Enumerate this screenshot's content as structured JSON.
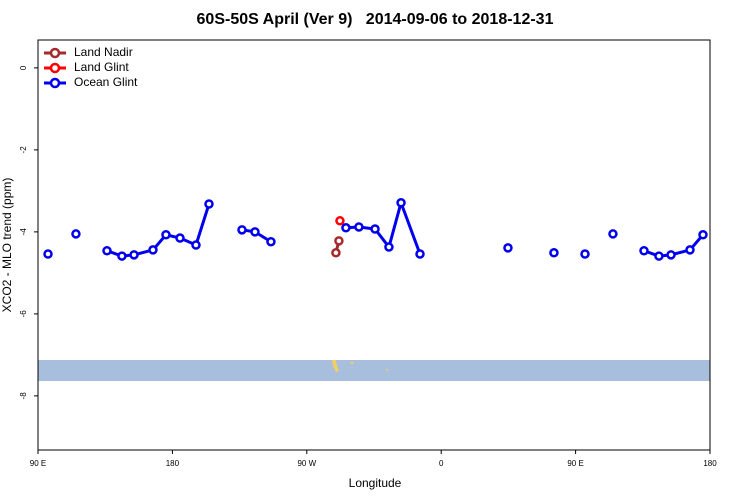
{
  "chart_data": {
    "type": "line",
    "title": "60S-50S April (Ver 9)   2014-09-06 to 2018-12-31",
    "xlabel": "Longitude",
    "ylabel": "XCO2 - MLO trend (ppm)",
    "xlim": [
      90,
      540
    ],
    "ylim": [
      -9.32,
      0.68
    ],
    "xticks": [
      {
        "value": 90,
        "label": "90 E"
      },
      180,
      {
        "value": 270,
        "label": "90 W"
      },
      {
        "value": 360,
        "label": "0"
      },
      {
        "value": 450,
        "label": "90 E"
      },
      {
        "value": 540,
        "label": "180"
      }
    ],
    "yticks": [
      0,
      -2,
      -4,
      -6,
      -8
    ],
    "legend": "top-left",
    "series": [
      {
        "name": "Land Nadir",
        "color": "#a52a2a",
        "x": [
          291.5,
          289.5
        ],
        "values": [
          -4.22,
          -4.51
        ]
      },
      {
        "name": "Land Glint",
        "color": "#ff0000",
        "x": [
          292.2
        ],
        "values": [
          -3.73
        ]
      },
      {
        "name": "Ocean Glint",
        "color": "#0000ee",
        "x": [
          96.7,
          null,
          115.4,
          null,
          136.2,
          146.2,
          154.3,
          167.0,
          175.7,
          185.1,
          195.8,
          204.5,
          null,
          226.6,
          235.3,
          246.0,
          null,
          296.2,
          304.9,
          315.7,
          325.0,
          333.1,
          345.8,
          null,
          404.7,
          null,
          435.5,
          null,
          456.3,
          null,
          475.0,
          null,
          495.8,
          505.8,
          513.9,
          526.6,
          535.3
        ],
        "values": [
          -4.54,
          null,
          -4.05,
          null,
          -4.46,
          -4.59,
          -4.56,
          -4.44,
          -4.07,
          -4.15,
          -4.32,
          -3.32,
          null,
          -3.95,
          -4.0,
          -4.24,
          null,
          -3.9,
          -3.88,
          -3.93,
          -4.37,
          -3.29,
          -4.54,
          null,
          -4.39,
          null,
          -4.51,
          null,
          -4.54,
          null,
          -4.05,
          null,
          -4.46,
          -4.59,
          -4.56,
          -4.44,
          -4.07
        ]
      }
    ]
  }
}
